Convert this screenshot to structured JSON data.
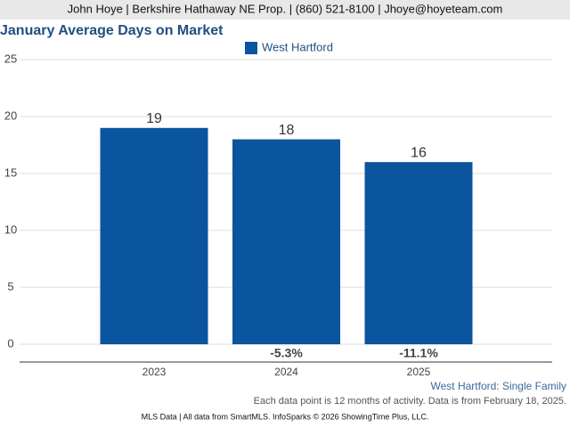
{
  "chart_data": {
    "type": "bar",
    "header": "John Hoye | Berkshire Hathaway NE Prop. | (860) 521-8100 | Jhoye@hoyeteam.com",
    "title": "January Average Days on Market",
    "categories": [
      "2023",
      "2024",
      "2025"
    ],
    "series": [
      {
        "name": "West Hartford",
        "color": "#0a559e",
        "values": [
          19,
          18,
          16
        ]
      }
    ],
    "change_labels": [
      null,
      "-5.3%",
      "-11.1%"
    ],
    "ylim": [
      0,
      25
    ],
    "yticks": [
      0,
      5,
      10,
      15,
      20,
      25
    ],
    "grid": true,
    "legend": "top",
    "subtitle": "West Hartford: Single Family",
    "note": "Each data point is 12 months of activity. Data is from February 18, 2025.",
    "footer": "MLS Data | All data from SmartMLS. InfoSparks © 2026 ShowingTime Plus, LLC."
  }
}
